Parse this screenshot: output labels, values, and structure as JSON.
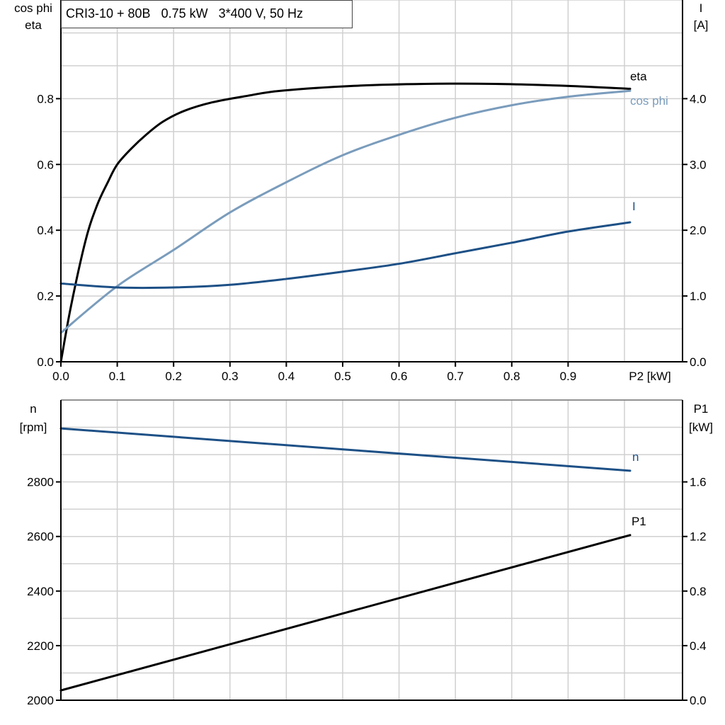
{
  "title": "CRI3-10 + 80B   0.75 kW   3*400 V, 50 Hz",
  "colors": {
    "eta": "#000000",
    "cos_phi": "#7a9cbc",
    "I": "#1d5086",
    "n": "#1d5086",
    "P1": "#000000",
    "grid": "#d0d0d0"
  },
  "chart_data": [
    {
      "type": "line",
      "xlabel": "P2 [kW]",
      "xlim": [
        0,
        1.1
      ],
      "xticks": [
        "0.0",
        "0.1",
        "0.2",
        "0.3",
        "0.4",
        "0.5",
        "0.6",
        "0.7",
        "0.8",
        "0.9"
      ],
      "ylabel_left": [
        "cos phi",
        "eta"
      ],
      "ylim_left": [
        0,
        1.1
      ],
      "yticks_left": [
        "0.0",
        "0.2",
        "0.4",
        "0.6",
        "0.8"
      ],
      "ylabel_right": [
        "I",
        "[A]"
      ],
      "ylim_right": [
        0,
        5.5
      ],
      "yticks_right": [
        "0.0",
        "1.0",
        "2.0",
        "3.0",
        "4.0"
      ],
      "grid": true,
      "series": [
        {
          "name": "eta",
          "axis": "left",
          "x": [
            0,
            0.018,
            0.044,
            0.064,
            0.083,
            0.1,
            0.126,
            0.151,
            0.181,
            0.219,
            0.269,
            0.332,
            0.39,
            0.52,
            0.645,
            0.77,
            0.897,
            1.01
          ],
          "y": [
            0,
            0.17,
            0.37,
            0.475,
            0.545,
            0.6,
            0.65,
            0.69,
            0.73,
            0.763,
            0.789,
            0.809,
            0.824,
            0.839,
            0.845,
            0.845,
            0.839,
            0.83
          ]
        },
        {
          "name": "cos phi",
          "axis": "left",
          "x": [
            0,
            0.1,
            0.2,
            0.3,
            0.4,
            0.5,
            0.6,
            0.7,
            0.8,
            0.9,
            1.01
          ],
          "y": [
            0.088,
            0.23,
            0.34,
            0.454,
            0.546,
            0.628,
            0.69,
            0.742,
            0.78,
            0.806,
            0.824
          ]
        },
        {
          "name": "I",
          "axis": "right",
          "x": [
            0,
            0.1,
            0.2,
            0.3,
            0.4,
            0.5,
            0.6,
            0.7,
            0.8,
            0.9,
            1.01
          ],
          "y": [
            1.19,
            1.13,
            1.13,
            1.17,
            1.26,
            1.37,
            1.49,
            1.65,
            1.81,
            1.98,
            2.12
          ]
        }
      ]
    },
    {
      "type": "line",
      "xlim": [
        0,
        1.1
      ],
      "ylabel_left": [
        "n",
        "[rpm]"
      ],
      "ylim_left": [
        2000,
        3100
      ],
      "yticks_left": [
        "2000",
        "2200",
        "2400",
        "2600",
        "2800"
      ],
      "ylabel_right": [
        "P1",
        "[kW]"
      ],
      "ylim_right": [
        0,
        2.2
      ],
      "yticks_right": [
        "0.0",
        "0.4",
        "0.8",
        "1.2",
        "1.6"
      ],
      "grid": true,
      "series": [
        {
          "name": "n",
          "axis": "left",
          "x": [
            0,
            1.01
          ],
          "y": [
            2996,
            2841
          ]
        },
        {
          "name": "P1",
          "axis": "right",
          "x": [
            0,
            1.01
          ],
          "y": [
            0.072,
            1.21
          ]
        }
      ]
    }
  ]
}
